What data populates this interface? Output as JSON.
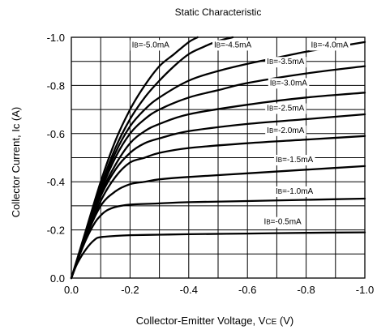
{
  "chart_data": {
    "type": "line",
    "title": "Static Characteristic",
    "xlabel": "Collector-Emitter Voltage, VCE (V)",
    "xlabel_parts": {
      "text": "Collector-Emitter Voltage, V",
      "sub": "CE",
      "unit": " (V)"
    },
    "ylabel": "Collector Current, Ic (A)",
    "xlim": [
      0,
      -1.0
    ],
    "ylim": [
      0,
      -1.0
    ],
    "x_ticks": [
      "0.0",
      "-0.2",
      "-0.4",
      "-0.6",
      "-0.8",
      "-1.0"
    ],
    "y_ticks": [
      "0.0",
      "-0.2",
      "-0.4",
      "-0.6",
      "-0.8",
      "-1.0"
    ],
    "grid": true,
    "series": [
      {
        "name": "IB=-0.5mA",
        "label": {
          "main": "I",
          "sub": "B",
          "rest": "=-0.5mA"
        },
        "x": [
          0,
          -0.02,
          -0.05,
          -0.08,
          -0.1,
          -0.15,
          -0.2,
          -0.3,
          -0.4,
          -0.6,
          -0.8,
          -1.0
        ],
        "y": [
          0,
          -0.06,
          -0.12,
          -0.16,
          -0.17,
          -0.175,
          -0.178,
          -0.18,
          -0.182,
          -0.185,
          -0.188,
          -0.19
        ]
      },
      {
        "name": "IB=-1.0mA",
        "label": {
          "main": "I",
          "sub": "B",
          "rest": "=-1.0mA"
        },
        "x": [
          0,
          -0.02,
          -0.05,
          -0.08,
          -0.1,
          -0.12,
          -0.15,
          -0.2,
          -0.3,
          -0.4,
          -0.6,
          -0.8,
          -1.0
        ],
        "y": [
          0,
          -0.07,
          -0.16,
          -0.23,
          -0.26,
          -0.28,
          -0.295,
          -0.305,
          -0.31,
          -0.315,
          -0.32,
          -0.325,
          -0.33
        ]
      },
      {
        "name": "IB=-1.5mA",
        "label": {
          "main": "I",
          "sub": "B",
          "rest": "=-1.5mA"
        },
        "x": [
          0,
          -0.05,
          -0.1,
          -0.15,
          -0.2,
          -0.25,
          -0.3,
          -0.4,
          -0.6,
          -0.8,
          -1.0
        ],
        "y": [
          0,
          -0.17,
          -0.3,
          -0.36,
          -0.39,
          -0.4,
          -0.41,
          -0.42,
          -0.435,
          -0.45,
          -0.465
        ]
      },
      {
        "name": "IB=-2.0mA",
        "label": {
          "main": "I",
          "sub": "B",
          "rest": "=-2.0mA"
        },
        "x": [
          0,
          -0.05,
          -0.1,
          -0.15,
          -0.2,
          -0.25,
          -0.3,
          -0.4,
          -0.6,
          -0.8,
          -1.0
        ],
        "y": [
          0,
          -0.17,
          -0.32,
          -0.42,
          -0.48,
          -0.5,
          -0.52,
          -0.54,
          -0.56,
          -0.575,
          -0.59
        ]
      },
      {
        "name": "IB=-2.5mA",
        "label": {
          "main": "I",
          "sub": "B",
          "rest": "=-2.5mA"
        },
        "x": [
          0,
          -0.05,
          -0.1,
          -0.15,
          -0.2,
          -0.25,
          -0.3,
          -0.4,
          -0.6,
          -0.8,
          -1.0
        ],
        "y": [
          0,
          -0.18,
          -0.34,
          -0.45,
          -0.52,
          -0.56,
          -0.58,
          -0.61,
          -0.64,
          -0.66,
          -0.68
        ]
      },
      {
        "name": "IB=-3.0mA",
        "label": {
          "main": "I",
          "sub": "B",
          "rest": "=-3.0mA"
        },
        "x": [
          0,
          -0.05,
          -0.1,
          -0.15,
          -0.2,
          -0.25,
          -0.3,
          -0.4,
          -0.6,
          -0.8,
          -1.0
        ],
        "y": [
          0,
          -0.18,
          -0.35,
          -0.47,
          -0.56,
          -0.61,
          -0.64,
          -0.68,
          -0.72,
          -0.75,
          -0.77
        ]
      },
      {
        "name": "IB=-3.5mA",
        "label": {
          "main": "I",
          "sub": "B",
          "rest": "=-3.5mA"
        },
        "x": [
          0,
          -0.05,
          -0.1,
          -0.15,
          -0.2,
          -0.25,
          -0.3,
          -0.4,
          -0.5,
          -0.6,
          -0.8,
          -1.0
        ],
        "y": [
          0,
          -0.18,
          -0.36,
          -0.5,
          -0.6,
          -0.66,
          -0.7,
          -0.75,
          -0.78,
          -0.81,
          -0.85,
          -0.88
        ]
      },
      {
        "name": "IB=-4.0mA",
        "label": {
          "main": "I",
          "sub": "B",
          "rest": "=-4.0mA"
        },
        "x": [
          0,
          -0.05,
          -0.1,
          -0.15,
          -0.2,
          -0.25,
          -0.3,
          -0.4,
          -0.5,
          -0.6,
          -0.7,
          -0.8,
          -0.9,
          -1.0
        ],
        "y": [
          0,
          -0.18,
          -0.37,
          -0.52,
          -0.63,
          -0.7,
          -0.75,
          -0.82,
          -0.86,
          -0.89,
          -0.915,
          -0.94,
          -0.96,
          -0.98
        ]
      },
      {
        "name": "IB=-4.5mA",
        "label": {
          "main": "I",
          "sub": "B",
          "rest": "=-4.5mA"
        },
        "x": [
          0,
          -0.05,
          -0.1,
          -0.15,
          -0.2,
          -0.25,
          -0.3,
          -0.35,
          -0.4,
          -0.45,
          -0.5,
          -0.55
        ],
        "y": [
          0,
          -0.19,
          -0.38,
          -0.54,
          -0.66,
          -0.75,
          -0.82,
          -0.88,
          -0.93,
          -0.96,
          -0.985,
          -1.0
        ]
      },
      {
        "name": "IB=-5.0mA",
        "label": {
          "main": "I",
          "sub": "B",
          "rest": "=-5.0mA"
        },
        "x": [
          0,
          -0.05,
          -0.1,
          -0.15,
          -0.2,
          -0.25,
          -0.3,
          -0.35,
          -0.4,
          -0.43
        ],
        "y": [
          0,
          -0.2,
          -0.4,
          -0.57,
          -0.7,
          -0.8,
          -0.88,
          -0.93,
          -0.98,
          -1.0
        ]
      }
    ],
    "label_positions": [
      {
        "series": 0,
        "x": -0.72,
        "y": -0.235
      },
      {
        "series": 1,
        "x": -0.76,
        "y": -0.362
      },
      {
        "series": 2,
        "x": -0.76,
        "y": -0.493
      },
      {
        "series": 3,
        "x": -0.73,
        "y": -0.615
      },
      {
        "series": 4,
        "x": -0.73,
        "y": -0.707
      },
      {
        "series": 5,
        "x": -0.74,
        "y": -0.812
      },
      {
        "series": 6,
        "x": -0.73,
        "y": -0.9
      },
      {
        "series": 7,
        "x": -0.88,
        "y": -0.97
      },
      {
        "series": 8,
        "x": -0.55,
        "y": -0.97
      },
      {
        "series": 9,
        "x": -0.27,
        "y": -0.97
      }
    ]
  }
}
